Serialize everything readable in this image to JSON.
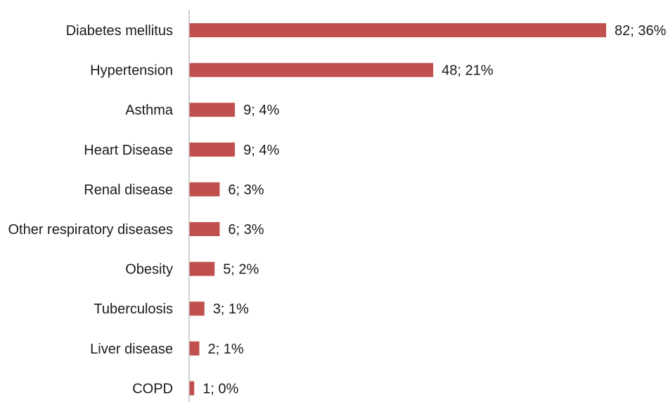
{
  "chart_data": {
    "type": "bar",
    "orientation": "horizontal",
    "categories": [
      "Diabetes mellitus",
      "Hypertension",
      "Asthma",
      "Heart Disease",
      "Renal disease",
      "Other respiratory diseases",
      "Obesity",
      "Tuberculosis",
      "Liver disease",
      "COPD"
    ],
    "values": [
      82,
      48,
      9,
      9,
      6,
      6,
      5,
      3,
      2,
      1
    ],
    "data_labels": [
      "82; 36%",
      "48; 21%",
      "9; 4%",
      "9; 4%",
      "6; 3%",
      "6; 3%",
      "5; 2%",
      "3; 1%",
      "2; 1%",
      "1; 0%"
    ],
    "title": "",
    "xlabel": "",
    "ylabel": "",
    "xlim": [
      0,
      82
    ],
    "grid": false,
    "legend": "none",
    "bar_color": "#C0504D",
    "axis_color": "#BFBFBF"
  }
}
